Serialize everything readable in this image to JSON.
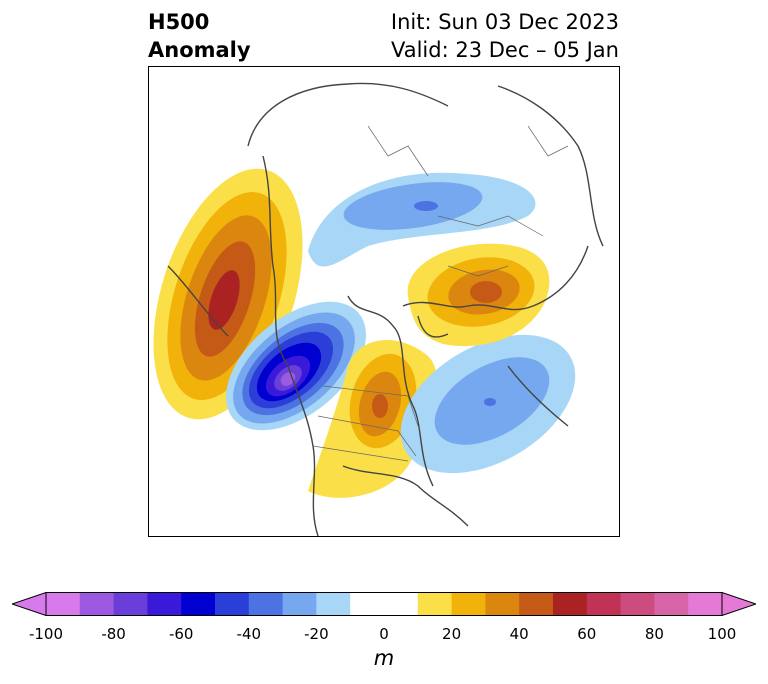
{
  "header": {
    "title_line1": "H500",
    "title_line2": "Anomaly",
    "init": "Init: Sun 03 Dec 2023",
    "valid": "Valid: 23 Dec – 05 Jan"
  },
  "colorbar": {
    "units": "m",
    "tick_labels": [
      "-100",
      "-80",
      "-60",
      "-40",
      "-20",
      "0",
      "20",
      "40",
      "60",
      "80",
      "100"
    ],
    "colors": [
      "#d77aec",
      "#9b5ae0",
      "#6a3ed8",
      "#3a1ad8",
      "#0000d0",
      "#2c3ed8",
      "#4d72e2",
      "#75a8ee",
      "#a8d6f6",
      "#ffffff",
      "#ffffff",
      "#fbdf48",
      "#f1b20a",
      "#db860f",
      "#c45a16",
      "#aa2222",
      "#c03355",
      "#cc4c80",
      "#d765a8",
      "#e57ad6"
    ],
    "low_extend_color": "#d77aec",
    "high_extend_color": "#e57ad6"
  }
}
